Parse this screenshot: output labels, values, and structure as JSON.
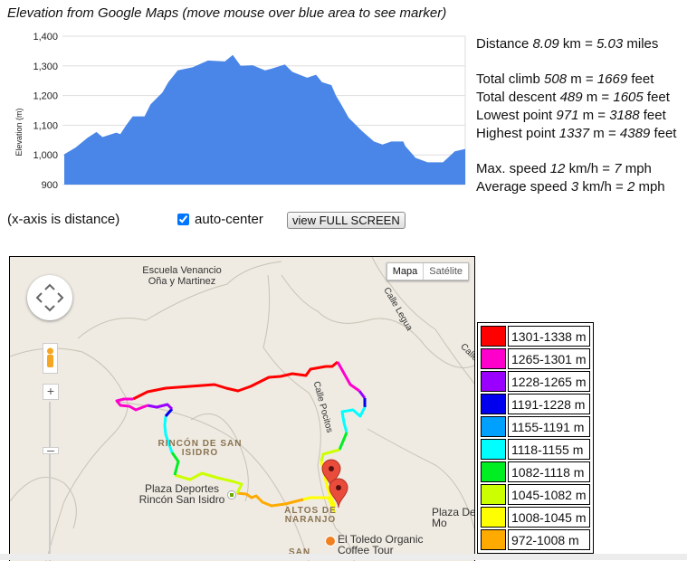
{
  "title": "Elevation from Google Maps (move mouse over blue area to see marker)",
  "chart_data": {
    "type": "area",
    "ylabel": "Elevation (m)",
    "xlabel": "",
    "ylim": [
      900,
      1400
    ],
    "yticks": [
      "1,400",
      "1,300",
      "1,200",
      "1,100",
      "1,000",
      "900"
    ],
    "grid": true,
    "color": "#4a86e8",
    "x_km": [
      0,
      0.23,
      0.47,
      0.65,
      0.77,
      1.05,
      1.13,
      1.25,
      1.38,
      1.62,
      1.74,
      1.98,
      2.1,
      2.29,
      2.59,
      2.9,
      3.24,
      3.4,
      3.56,
      3.8,
      4.05,
      4.17,
      4.45,
      4.6,
      4.9,
      5.08,
      5.2,
      5.39,
      5.48,
      5.57,
      5.74,
      6.01,
      6.25,
      6.42,
      6.6,
      6.84,
      6.88,
      7.09,
      7.33,
      7.64,
      7.88,
      8.09
    ],
    "elevation_m": [
      1002,
      1025,
      1058,
      1077,
      1060,
      1075,
      1070,
      1100,
      1130,
      1130,
      1170,
      1210,
      1245,
      1285,
      1295,
      1318,
      1315,
      1337,
      1300,
      1302,
      1285,
      1290,
      1305,
      1280,
      1260,
      1270,
      1245,
      1235,
      1200,
      1175,
      1125,
      1080,
      1045,
      1035,
      1045,
      1045,
      1030,
      990,
      975,
      975,
      1012,
      1020
    ]
  },
  "stats": {
    "distance": {
      "label": "Distance",
      "km": "8.09",
      "km_unit": "km =",
      "mi": "5.03",
      "mi_unit": "miles"
    },
    "climb": {
      "label": "Total climb",
      "m": "508",
      "m_unit": "m =",
      "ft": "1669",
      "ft_unit": "feet"
    },
    "descent": {
      "label": "Total descent",
      "m": "489",
      "m_unit": "m =",
      "ft": "1605",
      "ft_unit": "feet"
    },
    "lowest": {
      "label": "Lowest point",
      "m": "971",
      "m_unit": "m =",
      "ft": "3188",
      "ft_unit": "feet"
    },
    "highest": {
      "label": "Highest point",
      "m": "1337",
      "m_unit": "m =",
      "ft": "4389",
      "ft_unit": "feet"
    },
    "maxspeed": {
      "label": "Max. speed",
      "a": "12",
      "a_unit": "km/h =",
      "b": "7",
      "b_unit": "mph"
    },
    "avgspeed": {
      "label": "Average speed",
      "a": "3",
      "a_unit": "km/h =",
      "b": "2",
      "b_unit": "mph"
    }
  },
  "controls": {
    "xnote": "(x-axis is distance)",
    "autocenter": "auto-center",
    "autocenter_checked": true,
    "fullscreen": "view FULL SCREEN"
  },
  "map": {
    "type_buttons": [
      "Mapa",
      "Satélite"
    ],
    "labels": [
      "Escuela Venancio Oña y Martinez",
      "Plaza Deportes Rincón San Isidro",
      "El Toledo Organic Coffee Tour",
      "Plaza Dep Mo",
      "Calle Pocitos",
      "Calle Legua",
      "Calle"
    ],
    "areas": [
      "RINCÓN DE SAN ISIDRO",
      "ALTOS DE NARANJO",
      "SAN"
    ]
  },
  "legend": [
    {
      "range": "1301-1338 m",
      "color": "#ff0000"
    },
    {
      "range": "1265-1301 m",
      "color": "#ff00cc"
    },
    {
      "range": "1228-1265 m",
      "color": "#9900ff"
    },
    {
      "range": "1191-1228 m",
      "color": "#0000ee"
    },
    {
      "range": "1155-1191 m",
      "color": "#00a0ff"
    },
    {
      "range": "1118-1155 m",
      "color": "#00ffff"
    },
    {
      "range": "1082-1118 m",
      "color": "#00ee22"
    },
    {
      "range": "1045-1082 m",
      "color": "#ccff00"
    },
    {
      "range": "1008-1045 m",
      "color": "#ffff00"
    },
    {
      "range": "972-1008 m",
      "color": "#ffaa00"
    }
  ]
}
